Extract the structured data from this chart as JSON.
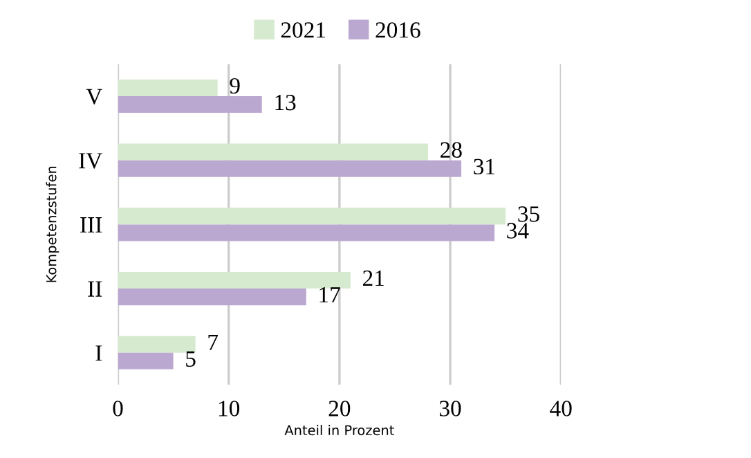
{
  "chart_data": {
    "type": "bar",
    "orientation": "horizontal",
    "categories": [
      "V",
      "IV",
      "III",
      "II",
      "I"
    ],
    "series": [
      {
        "name": "2021",
        "color": "#d6eacf",
        "values": [
          9,
          28,
          35,
          21,
          7
        ]
      },
      {
        "name": "2016",
        "color": "#bba8d0",
        "values": [
          13,
          31,
          34,
          17,
          5
        ]
      }
    ],
    "xlabel": "Anteil in Prozent",
    "ylabel": "Kompetenzstufen",
    "xlim": [
      0,
      40
    ],
    "xticks": [
      0,
      10,
      20,
      30,
      40
    ],
    "grid": "x",
    "legend": "top",
    "data_labels": true
  }
}
